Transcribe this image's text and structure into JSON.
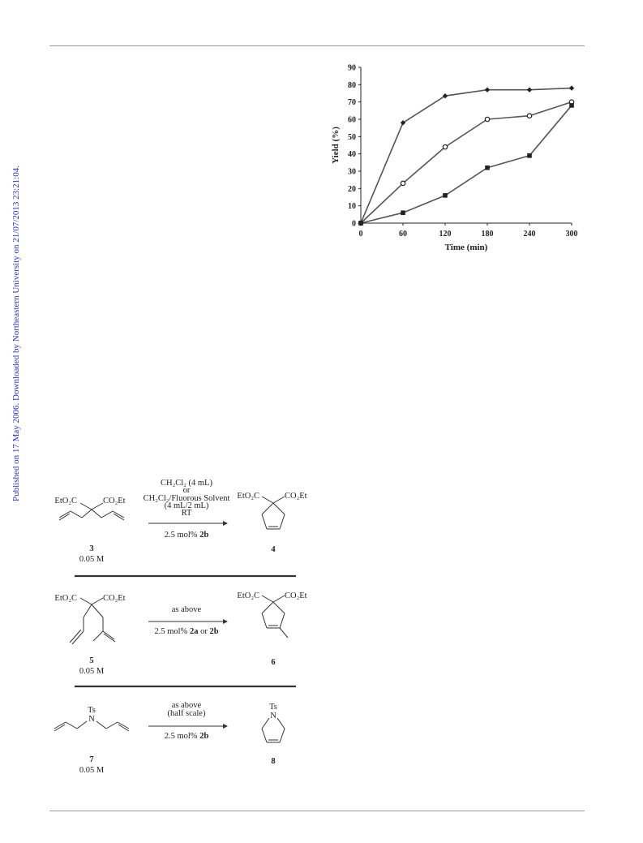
{
  "sidebar_note": "Published on 17 May 2006. Downloaded by Northeastern University on 21/07/2013 23:21:04.",
  "colors": {
    "sidebar": "#2b2fd6",
    "series": "#555555"
  },
  "chart_data": {
    "type": "line",
    "xlabel": "Time (min)",
    "ylabel": "Yield (%)",
    "x": [
      0,
      60,
      120,
      180,
      240,
      300
    ],
    "xticks": [
      "0",
      "60",
      "120",
      "180",
      "240",
      "300"
    ],
    "yticks": [
      "0",
      "10",
      "20",
      "30",
      "40",
      "50",
      "60",
      "70",
      "80",
      "90"
    ],
    "xlim": [
      0,
      300
    ],
    "ylim": [
      0,
      90
    ],
    "grid": false,
    "series": [
      {
        "marker": "diamond-filled",
        "values": [
          0,
          58,
          73.5,
          77,
          77,
          78
        ]
      },
      {
        "marker": "circle-open",
        "values": [
          0,
          23,
          44,
          60,
          62,
          70
        ]
      },
      {
        "marker": "square-filled",
        "values": [
          0,
          6,
          16,
          32,
          39,
          68
        ]
      }
    ]
  },
  "scheme": {
    "reaction1": {
      "reactant_label": "3",
      "reactant_conc": "0.05 M",
      "reactant_left_group": "EtO₂C",
      "reactant_right_group": "CO₂Et",
      "cond_line1": "CH₂Cl₂ (4 mL)",
      "cond_line2": "or",
      "cond_line3": "CH₂Cl₂/Fluorous Solvent",
      "cond_line4": "(4 mL/2 mL)",
      "cond_line5": "RT",
      "catalyst_prefix": "2.5 mol% ",
      "catalyst": "2b",
      "product_label": "4",
      "product_left_group": "EtO₂C",
      "product_right_group": "CO₂Et"
    },
    "reaction2": {
      "reactant_label": "5",
      "reactant_conc": "0.05 M",
      "reactant_left_group": "EtO₂C",
      "reactant_right_group": "CO₂Et",
      "cond_line1": "as above",
      "catalyst_prefix": "2.5 mol% ",
      "catalyst_a": "2a",
      "catalyst_or": " or ",
      "catalyst_b": "2b",
      "product_label": "6",
      "product_left_group": "EtO₂C",
      "product_right_group": "CO₂Et"
    },
    "reaction3": {
      "reactant_label": "7",
      "reactant_conc": "0.05 M",
      "reactant_ts": "Ts",
      "reactant_n": "N",
      "cond_line1": "as above",
      "cond_line2": "(half scale)",
      "catalyst_prefix": "2.5 mol% ",
      "catalyst": "2b",
      "product_label": "8",
      "product_ts": "Ts",
      "product_n": "N"
    }
  }
}
